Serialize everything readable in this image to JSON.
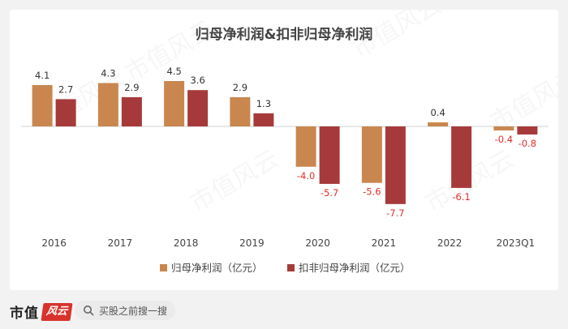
{
  "chart_data": {
    "type": "bar",
    "title": "归母净利润&扣非归母净利润",
    "categories": [
      "2016",
      "2017",
      "2018",
      "2019",
      "2020",
      "2021",
      "2022",
      "2023Q1"
    ],
    "series": [
      {
        "name": "归母净利润（亿元）",
        "values": [
          4.1,
          4.3,
          4.5,
          2.9,
          -4.0,
          -5.6,
          0.4,
          -0.4
        ],
        "color": "#c9874f"
      },
      {
        "name": "扣非归母净利润（亿元）",
        "values": [
          2.7,
          2.9,
          3.6,
          1.3,
          -5.7,
          -7.7,
          -6.1,
          -0.8
        ],
        "color": "#a63a3a"
      }
    ],
    "ylim": [
      -7.7,
      4.5
    ],
    "negative_label_color": "#e0302a",
    "positive_label_color": "#333333",
    "grid": false,
    "legend_position": "bottom"
  },
  "footer": {
    "brand": "市值",
    "brand_mark": "风云",
    "search_placeholder": "买股之前搜一搜"
  },
  "watermark": "市值风云"
}
